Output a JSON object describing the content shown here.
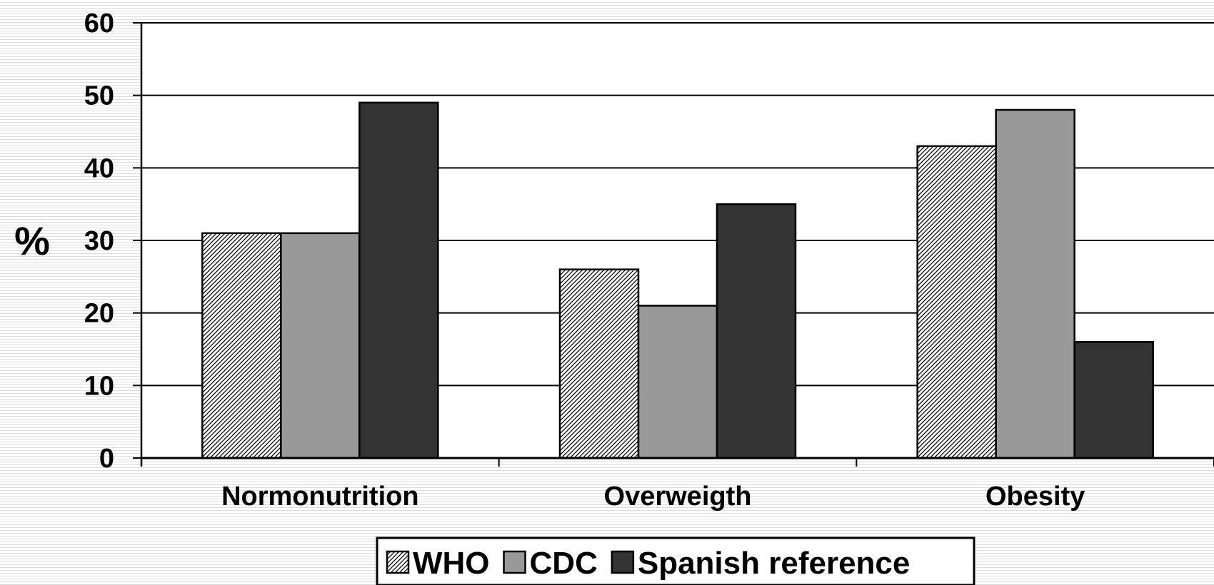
{
  "chart_data": {
    "type": "bar",
    "categories": [
      "Normonutrition",
      "Overweigth",
      "Obesity"
    ],
    "series": [
      {
        "name": "WHO",
        "values": [
          31,
          26,
          43
        ],
        "fill": "hatch",
        "color": "#ffffff"
      },
      {
        "name": "CDC",
        "values": [
          31,
          21,
          48
        ],
        "fill": "solid",
        "color": "#999999"
      },
      {
        "name": "Spanish reference",
        "values": [
          49,
          35,
          16
        ],
        "fill": "solid",
        "color": "#333333"
      }
    ],
    "ylabel": "%",
    "ylim": [
      0,
      60
    ],
    "yticks": [
      0,
      10,
      20,
      30,
      40,
      50,
      60
    ],
    "grid": true,
    "legend": "bottom"
  }
}
